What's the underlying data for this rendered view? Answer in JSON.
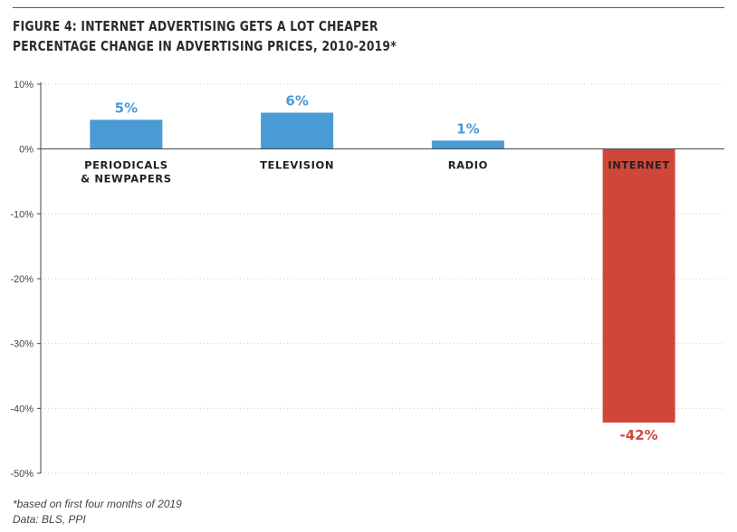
{
  "title_line1": "FIGURE 4: INTERNET ADVERTISING GETS A LOT CHEAPER",
  "title_line2": "PERCENTAGE CHANGE IN ADVERTISING PRICES, 2010-2019*",
  "footnote": "*based on first four months of 2019",
  "source": "Data: BLS, PPI",
  "colors": {
    "default_bar": "#4a9ad6",
    "highlight_bar": "#d0473a",
    "positive_label": "#4a9ad6",
    "negative_label": "#d0473a",
    "axis": "#444444",
    "grid": "#cccccc"
  },
  "chart_data": {
    "type": "bar",
    "categories": [
      [
        "PERIODICALS",
        "& NEWPAPERS"
      ],
      [
        "TELEVISION"
      ],
      [
        "RADIO"
      ],
      [
        "INTERNET"
      ]
    ],
    "values": [
      4.5,
      5.6,
      1.3,
      -42.2
    ],
    "data_labels": [
      "5%",
      "6%",
      "1%",
      "-42%"
    ],
    "highlight_index": 3,
    "ylim": [
      -50,
      10
    ],
    "yticks": [
      10,
      0,
      -10,
      -20,
      -30,
      -40,
      -50
    ],
    "ytick_labels": [
      "10%",
      "0%",
      "-10%",
      "-20%",
      "-30%",
      "-40%",
      "-50%"
    ],
    "grid": "horizontal-dotted",
    "legend": "none"
  }
}
